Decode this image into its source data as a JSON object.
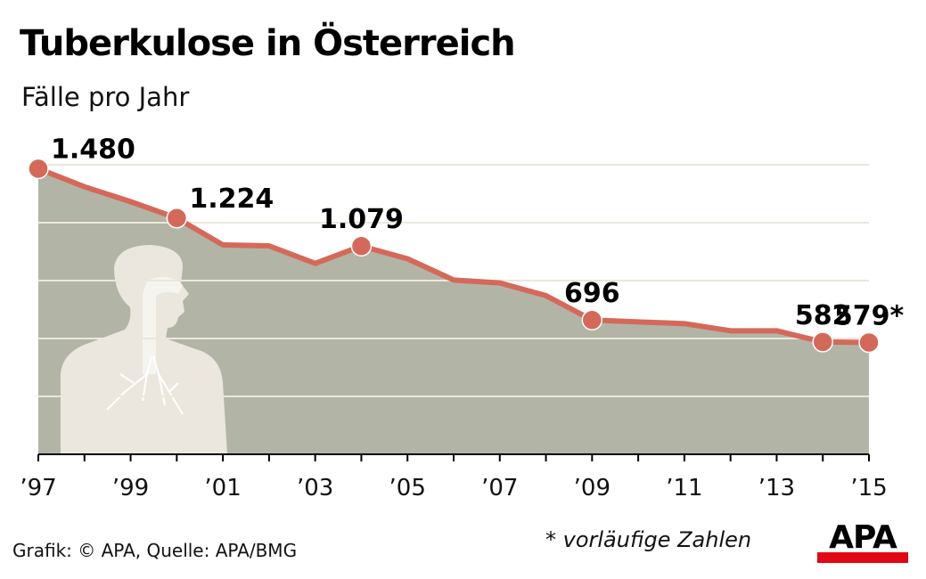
{
  "header": {
    "title": "Tuberkulose in Österreich",
    "subtitle": "Fälle pro Jahr"
  },
  "footer": {
    "source": "Grafik: © APA, Quelle: APA/BMG",
    "note": "* vorläufige Zahlen",
    "logo": "APA"
  },
  "colors": {
    "line": "#d4695a",
    "area": "#b2b5a6",
    "grid": "#ece6dc",
    "silhouette": "#ebe7de"
  },
  "chart_data": {
    "type": "area",
    "title": "Tuberkulose in Österreich",
    "ylabel": "Fälle pro Jahr",
    "x": [
      1997,
      1998,
      1999,
      2000,
      2001,
      2002,
      2003,
      2004,
      2005,
      2006,
      2007,
      2008,
      2009,
      2010,
      2011,
      2012,
      2013,
      2014,
      2015
    ],
    "xtick_labels": [
      "’97",
      "’99",
      "’01",
      "’03",
      "’05",
      "’07",
      "’09",
      "’11",
      "’13",
      "’15"
    ],
    "xtick_years": [
      1997,
      1999,
      2001,
      2003,
      2005,
      2007,
      2009,
      2011,
      2013,
      2015
    ],
    "values": [
      1480,
      1386,
      1309,
      1224,
      1085,
      1080,
      989,
      1079,
      1013,
      903,
      888,
      822,
      696,
      686,
      677,
      640,
      640,
      582,
      579
    ],
    "highlighted": [
      {
        "year": 1997,
        "label": "1.480",
        "pos": "right"
      },
      {
        "year": 2000,
        "label": "1.224",
        "pos": "right"
      },
      {
        "year": 2004,
        "label": "1.079",
        "pos": "above"
      },
      {
        "year": 2009,
        "label": "696",
        "pos": "above"
      },
      {
        "year": 2014,
        "label": "582",
        "pos": "above"
      },
      {
        "year": 2015,
        "label": "579*",
        "pos": "above"
      }
    ],
    "gridlines": [
      300,
      600,
      900,
      1200,
      1500
    ],
    "ylim": [
      0,
      1500
    ],
    "grid": true,
    "legend": "none"
  }
}
